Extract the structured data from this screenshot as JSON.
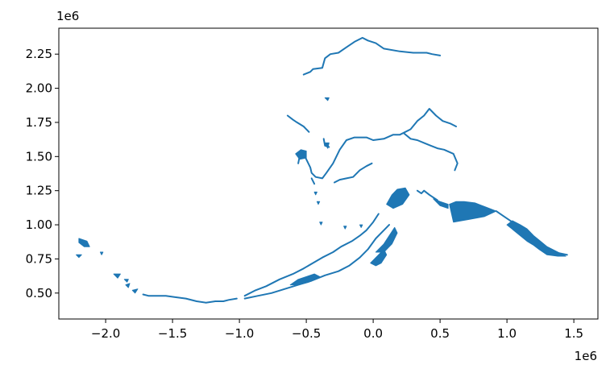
{
  "chart_data": {
    "type": "map",
    "title": "",
    "xlabel": "",
    "ylabel": "",
    "x_offset_label": "1e6",
    "y_offset_label": "1e6",
    "xlim": [
      -2.35,
      1.68
    ],
    "ylim": [
      0.31,
      2.44
    ],
    "xticks": [
      -2.0,
      -1.5,
      -1.0,
      -0.5,
      0.0,
      0.5,
      1.0,
      1.5
    ],
    "xtick_labels": [
      "−2.0",
      "−1.5",
      "−1.0",
      "−0.5",
      "0.0",
      "0.5",
      "1.0",
      "1.5"
    ],
    "yticks": [
      0.5,
      0.75,
      1.0,
      1.25,
      1.5,
      1.75,
      2.0,
      2.25
    ],
    "ytick_labels": [
      "0.50",
      "0.75",
      "1.00",
      "1.25",
      "1.50",
      "1.75",
      "2.00",
      "2.25"
    ],
    "grid": false,
    "color": "#1f77b4",
    "features": [
      {
        "name": "north-coast",
        "kind": "line",
        "points": [
          [
            -0.52,
            2.1
          ],
          [
            -0.47,
            2.12
          ],
          [
            -0.45,
            2.14
          ],
          [
            -0.38,
            2.15
          ],
          [
            -0.36,
            2.22
          ],
          [
            -0.32,
            2.25
          ],
          [
            -0.26,
            2.26
          ],
          [
            -0.2,
            2.3
          ],
          [
            -0.14,
            2.34
          ],
          [
            -0.08,
            2.37
          ],
          [
            -0.04,
            2.35
          ],
          [
            0.02,
            2.33
          ],
          [
            0.08,
            2.29
          ],
          [
            0.2,
            2.27
          ],
          [
            0.3,
            2.26
          ],
          [
            0.4,
            2.26
          ],
          [
            0.44,
            2.25
          ],
          [
            0.5,
            2.24
          ]
        ]
      },
      {
        "name": "north-coast-islet",
        "kind": "poly",
        "points": [
          [
            -0.36,
            1.93
          ],
          [
            -0.33,
            1.93
          ],
          [
            -0.34,
            1.91
          ]
        ]
      },
      {
        "name": "northwest-coast",
        "kind": "line",
        "points": [
          [
            -0.64,
            1.8
          ],
          [
            -0.6,
            1.77
          ],
          [
            -0.57,
            1.75
          ],
          [
            -0.52,
            1.72
          ],
          [
            -0.5,
            1.7
          ],
          [
            -0.48,
            1.68
          ]
        ]
      },
      {
        "name": "yukon-river",
        "kind": "line",
        "points": [
          [
            -0.56,
            1.45
          ],
          [
            -0.55,
            1.5
          ],
          [
            -0.52,
            1.52
          ],
          [
            -0.5,
            1.48
          ],
          [
            -0.47,
            1.42
          ],
          [
            -0.46,
            1.38
          ],
          [
            -0.43,
            1.35
          ],
          [
            -0.38,
            1.34
          ],
          [
            -0.35,
            1.38
          ],
          [
            -0.3,
            1.45
          ],
          [
            -0.25,
            1.55
          ],
          [
            -0.2,
            1.62
          ],
          [
            -0.14,
            1.64
          ],
          [
            -0.05,
            1.64
          ],
          [
            0.0,
            1.62
          ],
          [
            0.08,
            1.63
          ],
          [
            0.15,
            1.66
          ],
          [
            0.2,
            1.66
          ],
          [
            0.28,
            1.7
          ],
          [
            0.33,
            1.76
          ],
          [
            0.38,
            1.8
          ],
          [
            0.42,
            1.85
          ],
          [
            0.47,
            1.8
          ],
          [
            0.52,
            1.76
          ],
          [
            0.58,
            1.74
          ],
          [
            0.62,
            1.72
          ]
        ]
      },
      {
        "name": "tanana-river",
        "kind": "line",
        "points": [
          [
            0.23,
            1.67
          ],
          [
            0.28,
            1.63
          ],
          [
            0.33,
            1.62
          ],
          [
            0.38,
            1.6
          ],
          [
            0.43,
            1.58
          ],
          [
            0.48,
            1.56
          ],
          [
            0.53,
            1.55
          ],
          [
            0.6,
            1.52
          ],
          [
            0.63,
            1.45
          ],
          [
            0.61,
            1.4
          ]
        ]
      },
      {
        "name": "kuskokwim-river",
        "kind": "line",
        "points": [
          [
            -0.29,
            1.31
          ],
          [
            -0.25,
            1.33
          ],
          [
            -0.2,
            1.34
          ],
          [
            -0.15,
            1.35
          ],
          [
            -0.1,
            1.4
          ],
          [
            -0.05,
            1.43
          ],
          [
            -0.01,
            1.45
          ]
        ]
      },
      {
        "name": "river-delta-lake",
        "kind": "poly",
        "points": [
          [
            -0.58,
            1.52
          ],
          [
            -0.54,
            1.55
          ],
          [
            -0.5,
            1.54
          ],
          [
            -0.5,
            1.49
          ],
          [
            -0.55,
            1.48
          ]
        ]
      },
      {
        "name": "river-west-branch",
        "kind": "line",
        "points": [
          [
            -0.46,
            1.34
          ],
          [
            -0.44,
            1.3
          ]
        ]
      },
      {
        "name": "river-spur",
        "kind": "line",
        "points": [
          [
            -0.37,
            1.63
          ],
          [
            -0.36,
            1.58
          ],
          [
            -0.33,
            1.57
          ]
        ]
      },
      {
        "name": "western-islet",
        "kind": "poly",
        "points": [
          [
            -0.36,
            1.6
          ],
          [
            -0.33,
            1.6
          ],
          [
            -0.34,
            1.56
          ]
        ]
      },
      {
        "name": "islet-1",
        "kind": "poly",
        "points": [
          [
            -0.44,
            1.24
          ],
          [
            -0.42,
            1.24
          ],
          [
            -0.43,
            1.22
          ]
        ]
      },
      {
        "name": "islet-2",
        "kind": "poly",
        "points": [
          [
            -0.42,
            1.17
          ],
          [
            -0.4,
            1.17
          ],
          [
            -0.41,
            1.15
          ]
        ]
      },
      {
        "name": "islet-3",
        "kind": "poly",
        "points": [
          [
            -0.4,
            1.02
          ],
          [
            -0.38,
            1.02
          ],
          [
            -0.39,
            1.0
          ]
        ]
      },
      {
        "name": "islet-4",
        "kind": "poly",
        "points": [
          [
            -0.22,
            0.99
          ],
          [
            -0.2,
            0.99
          ],
          [
            -0.21,
            0.97
          ]
        ]
      },
      {
        "name": "islet-5",
        "kind": "poly",
        "points": [
          [
            -0.1,
            1.0
          ],
          [
            -0.08,
            1.0
          ],
          [
            -0.09,
            0.98
          ]
        ]
      },
      {
        "name": "cook-inlet-basin",
        "kind": "poly",
        "points": [
          [
            0.1,
            1.15
          ],
          [
            0.14,
            1.22
          ],
          [
            0.18,
            1.26
          ],
          [
            0.24,
            1.27
          ],
          [
            0.27,
            1.22
          ],
          [
            0.22,
            1.15
          ],
          [
            0.15,
            1.12
          ]
        ]
      },
      {
        "name": "inland-lakes",
        "kind": "line",
        "points": [
          [
            0.33,
            1.25
          ],
          [
            0.36,
            1.23
          ],
          [
            0.38,
            1.25
          ],
          [
            0.42,
            1.22
          ],
          [
            0.45,
            1.2
          ],
          [
            0.48,
            1.18
          ]
        ]
      },
      {
        "name": "glacier-field",
        "kind": "poly",
        "points": [
          [
            0.57,
            1.15
          ],
          [
            0.62,
            1.17
          ],
          [
            0.68,
            1.17
          ],
          [
            0.76,
            1.16
          ],
          [
            0.84,
            1.13
          ],
          [
            0.92,
            1.1
          ],
          [
            0.83,
            1.06
          ],
          [
            0.72,
            1.04
          ],
          [
            0.6,
            1.02
          ]
        ]
      },
      {
        "name": "gulf-coast-link",
        "kind": "poly",
        "points": [
          [
            0.45,
            1.19
          ],
          [
            0.5,
            1.17
          ],
          [
            0.56,
            1.15
          ],
          [
            0.56,
            1.12
          ],
          [
            0.5,
            1.14
          ]
        ]
      },
      {
        "name": "southeast-panhandle",
        "kind": "line",
        "points": [
          [
            0.92,
            1.1
          ],
          [
            0.98,
            1.06
          ],
          [
            1.04,
            1.02
          ],
          [
            1.1,
            0.98
          ],
          [
            1.15,
            0.94
          ],
          [
            1.2,
            0.9
          ],
          [
            1.25,
            0.86
          ],
          [
            1.3,
            0.82
          ],
          [
            1.35,
            0.8
          ],
          [
            1.4,
            0.79
          ],
          [
            1.45,
            0.78
          ]
        ]
      },
      {
        "name": "southeast-islands",
        "kind": "poly",
        "points": [
          [
            1.0,
            1.0
          ],
          [
            1.05,
            0.96
          ],
          [
            1.1,
            0.92
          ],
          [
            1.15,
            0.88
          ],
          [
            1.2,
            0.85
          ],
          [
            1.24,
            0.82
          ],
          [
            1.3,
            0.78
          ],
          [
            1.38,
            0.77
          ],
          [
            1.44,
            0.77
          ],
          [
            1.38,
            0.8
          ],
          [
            1.3,
            0.84
          ],
          [
            1.25,
            0.88
          ],
          [
            1.2,
            0.92
          ],
          [
            1.15,
            0.97
          ],
          [
            1.1,
            1.0
          ],
          [
            1.04,
            1.03
          ]
        ]
      },
      {
        "name": "alaska-peninsula-north",
        "kind": "line",
        "points": [
          [
            -0.96,
            0.48
          ],
          [
            -0.88,
            0.52
          ],
          [
            -0.8,
            0.55
          ],
          [
            -0.7,
            0.6
          ],
          [
            -0.6,
            0.64
          ],
          [
            -0.52,
            0.68
          ],
          [
            -0.45,
            0.72
          ],
          [
            -0.38,
            0.76
          ],
          [
            -0.3,
            0.8
          ],
          [
            -0.24,
            0.84
          ],
          [
            -0.16,
            0.88
          ],
          [
            -0.1,
            0.92
          ],
          [
            -0.05,
            0.96
          ],
          [
            0.0,
            1.02
          ],
          [
            0.04,
            1.08
          ]
        ]
      },
      {
        "name": "alaska-peninsula-south",
        "kind": "line",
        "points": [
          [
            -0.96,
            0.46
          ],
          [
            -0.86,
            0.48
          ],
          [
            -0.76,
            0.5
          ],
          [
            -0.66,
            0.53
          ],
          [
            -0.56,
            0.56
          ],
          [
            -0.46,
            0.59
          ],
          [
            -0.36,
            0.63
          ],
          [
            -0.26,
            0.66
          ],
          [
            -0.18,
            0.7
          ],
          [
            -0.1,
            0.76
          ],
          [
            -0.04,
            0.82
          ],
          [
            0.02,
            0.9
          ],
          [
            0.08,
            0.96
          ],
          [
            0.12,
            1.0
          ]
        ]
      },
      {
        "name": "peninsula-islands",
        "kind": "poly",
        "points": [
          [
            -0.62,
            0.56
          ],
          [
            -0.56,
            0.6
          ],
          [
            -0.5,
            0.62
          ],
          [
            -0.44,
            0.64
          ],
          [
            -0.4,
            0.62
          ],
          [
            -0.48,
            0.58
          ],
          [
            -0.56,
            0.56
          ]
        ]
      },
      {
        "name": "kodiak-island",
        "kind": "poly",
        "points": [
          [
            -0.02,
            0.72
          ],
          [
            0.04,
            0.78
          ],
          [
            0.08,
            0.82
          ],
          [
            0.1,
            0.78
          ],
          [
            0.06,
            0.72
          ],
          [
            0.02,
            0.7
          ]
        ]
      },
      {
        "name": "kenai-peninsula",
        "kind": "poly",
        "points": [
          [
            0.02,
            0.8
          ],
          [
            0.08,
            0.86
          ],
          [
            0.12,
            0.92
          ],
          [
            0.16,
            0.98
          ],
          [
            0.18,
            0.94
          ],
          [
            0.14,
            0.86
          ],
          [
            0.08,
            0.8
          ]
        ]
      },
      {
        "name": "aleutian-chain",
        "kind": "line",
        "points": [
          [
            -1.02,
            0.46
          ],
          [
            -1.08,
            0.45
          ],
          [
            -1.12,
            0.44
          ],
          [
            -1.18,
            0.44
          ],
          [
            -1.25,
            0.43
          ],
          [
            -1.32,
            0.44
          ],
          [
            -1.4,
            0.46
          ],
          [
            -1.48,
            0.47
          ],
          [
            -1.55,
            0.48
          ],
          [
            -1.62,
            0.48
          ],
          [
            -1.68,
            0.48
          ],
          [
            -1.72,
            0.49
          ]
        ]
      },
      {
        "name": "aleutian-islet-1",
        "kind": "poly",
        "points": [
          [
            -1.8,
            0.52
          ],
          [
            -1.76,
            0.53
          ],
          [
            -1.78,
            0.5
          ]
        ]
      },
      {
        "name": "aleutian-islet-2",
        "kind": "poly",
        "points": [
          [
            -1.85,
            0.56
          ],
          [
            -1.82,
            0.57
          ],
          [
            -1.83,
            0.54
          ]
        ]
      },
      {
        "name": "aleutian-islet-3",
        "kind": "poly",
        "points": [
          [
            -1.94,
            0.64
          ],
          [
            -1.89,
            0.64
          ],
          [
            -1.91,
            0.61
          ]
        ]
      },
      {
        "name": "aleutian-islet-4",
        "kind": "poly",
        "points": [
          [
            -1.86,
            0.6
          ],
          [
            -1.83,
            0.6
          ],
          [
            -1.84,
            0.58
          ]
        ]
      },
      {
        "name": "near-islands",
        "kind": "poly",
        "points": [
          [
            -2.2,
            0.9
          ],
          [
            -2.14,
            0.88
          ],
          [
            -2.12,
            0.84
          ],
          [
            -2.16,
            0.84
          ],
          [
            -2.2,
            0.87
          ]
        ]
      },
      {
        "name": "near-islet",
        "kind": "poly",
        "points": [
          [
            -2.22,
            0.78
          ],
          [
            -2.18,
            0.78
          ],
          [
            -2.2,
            0.76
          ]
        ]
      },
      {
        "name": "far-islet",
        "kind": "poly",
        "points": [
          [
            -2.04,
            0.8
          ],
          [
            -2.02,
            0.8
          ],
          [
            -2.03,
            0.78
          ]
        ]
      }
    ]
  }
}
